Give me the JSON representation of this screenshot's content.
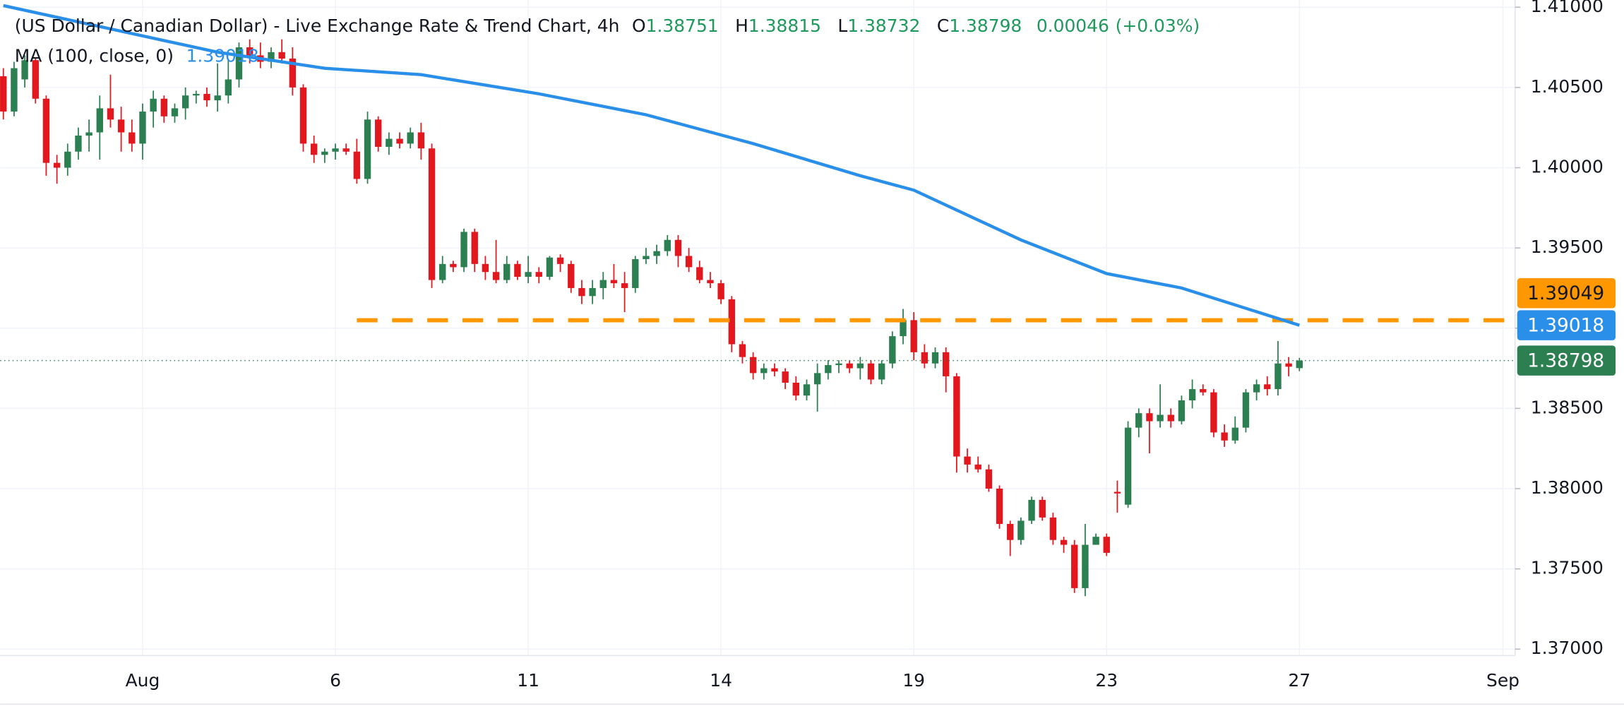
{
  "chart_data": {
    "type": "candlestick",
    "title": "(US Dollar / Canadian Dollar) - Live Exchange Rate & Trend Chart, 4h",
    "ohlc_labels": [
      "O",
      "H",
      "L",
      "C"
    ],
    "change": "0.00046",
    "change_pct": "(+0.03%)",
    "up_color": "#2b7f50",
    "down_color": "#e3171e",
    "header_value_color": "#1f9a5c",
    "xlim": [
      -0.3,
      151
    ],
    "xticks": [
      {
        "value": 13,
        "label": "Aug"
      },
      {
        "value": 31,
        "label": "6"
      },
      {
        "value": 49,
        "label": "11"
      },
      {
        "value": 67,
        "label": "14"
      },
      {
        "value": 85,
        "label": "19"
      },
      {
        "value": 103,
        "label": "23"
      },
      {
        "value": 121,
        "label": "27"
      },
      {
        "value": 140,
        "label": "Sep"
      }
    ],
    "ylim": [
      1.3696,
      1.41045
    ],
    "yticks": [
      {
        "value": 1.41,
        "label": "1.41000"
      },
      {
        "value": 1.405,
        "label": "1.40500"
      },
      {
        "value": 1.4,
        "label": "1.40000"
      },
      {
        "value": 1.395,
        "label": "1.39500"
      },
      {
        "value": 1.39,
        "label": "1.39000"
      },
      {
        "value": 1.385,
        "label": "1.38500"
      },
      {
        "value": 1.38,
        "label": "1.38000"
      },
      {
        "value": 1.375,
        "label": "1.37500"
      },
      {
        "value": 1.37,
        "label": "1.37000"
      }
    ],
    "grid": true,
    "candles": [
      [
        1.4057,
        1.4062,
        1.403,
        1.4035
      ],
      [
        1.4035,
        1.4066,
        1.4032,
        1.4062
      ],
      [
        1.4055,
        1.407,
        1.405,
        1.4067
      ],
      [
        1.4067,
        1.4068,
        1.404,
        1.4043
      ],
      [
        1.4043,
        1.4045,
        1.3995,
        1.4003
      ],
      [
        1.4003,
        1.4008,
        1.399,
        1.4
      ],
      [
        1.4,
        1.4015,
        1.3995,
        1.401
      ],
      [
        1.401,
        1.4025,
        1.4005,
        1.402
      ],
      [
        1.402,
        1.403,
        1.401,
        1.4022
      ],
      [
        1.4022,
        1.4045,
        1.4005,
        1.4037
      ],
      [
        1.4037,
        1.4058,
        1.4025,
        1.403
      ],
      [
        1.403,
        1.4038,
        1.401,
        1.4022
      ],
      [
        1.4022,
        1.403,
        1.401,
        1.4015
      ],
      [
        1.4015,
        1.404,
        1.4005,
        1.4035
      ],
      [
        1.4035,
        1.4048,
        1.4025,
        1.4043
      ],
      [
        1.4043,
        1.4045,
        1.4028,
        1.4032
      ],
      [
        1.4032,
        1.404,
        1.4028,
        1.4037
      ],
      [
        1.4037,
        1.405,
        1.403,
        1.4045
      ],
      [
        1.4045,
        1.4048,
        1.404,
        1.4046
      ],
      [
        1.4046,
        1.405,
        1.4038,
        1.4042
      ],
      [
        1.4042,
        1.4065,
        1.4035,
        1.4045
      ],
      [
        1.4045,
        1.4068,
        1.404,
        1.4055
      ],
      [
        1.4055,
        1.4078,
        1.405,
        1.4075
      ],
      [
        1.4075,
        1.408,
        1.4065,
        1.407
      ],
      [
        1.407,
        1.4078,
        1.4062,
        1.4066
      ],
      [
        1.4066,
        1.4075,
        1.4062,
        1.4072
      ],
      [
        1.4072,
        1.408,
        1.4065,
        1.4068
      ],
      [
        1.4068,
        1.4075,
        1.4045,
        1.405
      ],
      [
        1.405,
        1.4052,
        1.401,
        1.4015
      ],
      [
        1.4015,
        1.402,
        1.4003,
        1.4008
      ],
      [
        1.4008,
        1.4012,
        1.4003,
        1.401
      ],
      [
        1.401,
        1.4015,
        1.4005,
        1.4012
      ],
      [
        1.4012,
        1.4015,
        1.4008,
        1.401
      ],
      [
        1.401,
        1.4018,
        1.399,
        1.3993
      ],
      [
        1.3993,
        1.4035,
        1.399,
        1.403
      ],
      [
        1.403,
        1.4032,
        1.401,
        1.4013
      ],
      [
        1.4013,
        1.4022,
        1.4008,
        1.4018
      ],
      [
        1.4018,
        1.4022,
        1.4012,
        1.4015
      ],
      [
        1.4015,
        1.4025,
        1.4012,
        1.4022
      ],
      [
        1.4022,
        1.4028,
        1.4005,
        1.4012
      ],
      [
        1.4012,
        1.4015,
        1.3925,
        1.393
      ],
      [
        1.393,
        1.3945,
        1.3928,
        1.394
      ],
      [
        1.394,
        1.3942,
        1.3935,
        1.3938
      ],
      [
        1.3938,
        1.3962,
        1.3935,
        1.396
      ],
      [
        1.396,
        1.3962,
        1.3935,
        1.394
      ],
      [
        1.394,
        1.3945,
        1.393,
        1.3935
      ],
      [
        1.3935,
        1.3955,
        1.3928,
        1.393
      ],
      [
        1.393,
        1.3945,
        1.3928,
        1.394
      ],
      [
        1.394,
        1.3942,
        1.393,
        1.3932
      ],
      [
        1.3932,
        1.3945,
        1.3928,
        1.3935
      ],
      [
        1.3935,
        1.3938,
        1.3928,
        1.3932
      ],
      [
        1.3932,
        1.3945,
        1.393,
        1.3944
      ],
      [
        1.3944,
        1.3946,
        1.3935,
        1.394
      ],
      [
        1.394,
        1.3942,
        1.3922,
        1.3925
      ],
      [
        1.3925,
        1.393,
        1.3915,
        1.392
      ],
      [
        1.392,
        1.393,
        1.3915,
        1.3925
      ],
      [
        1.3925,
        1.3935,
        1.3918,
        1.393
      ],
      [
        1.393,
        1.394,
        1.3925,
        1.3928
      ],
      [
        1.3928,
        1.3935,
        1.391,
        1.3925
      ],
      [
        1.3925,
        1.3945,
        1.3922,
        1.3943
      ],
      [
        1.3943,
        1.395,
        1.394,
        1.3945
      ],
      [
        1.3945,
        1.3952,
        1.394,
        1.3948
      ],
      [
        1.3948,
        1.3958,
        1.3945,
        1.3955
      ],
      [
        1.3955,
        1.3958,
        1.3938,
        1.3945
      ],
      [
        1.3945,
        1.395,
        1.3935,
        1.3938
      ],
      [
        1.3938,
        1.3942,
        1.3928,
        1.393
      ],
      [
        1.393,
        1.3935,
        1.3925,
        1.3928
      ],
      [
        1.3928,
        1.393,
        1.3915,
        1.3918
      ],
      [
        1.3918,
        1.392,
        1.3885,
        1.389
      ],
      [
        1.389,
        1.3892,
        1.3878,
        1.3882
      ],
      [
        1.3882,
        1.3885,
        1.3868,
        1.3872
      ],
      [
        1.3872,
        1.3878,
        1.3868,
        1.3875
      ],
      [
        1.3875,
        1.3878,
        1.387,
        1.3873
      ],
      [
        1.3873,
        1.3875,
        1.3862,
        1.3866
      ],
      [
        1.3866,
        1.387,
        1.3855,
        1.3858
      ],
      [
        1.3858,
        1.3868,
        1.3855,
        1.3865
      ],
      [
        1.3865,
        1.3878,
        1.3848,
        1.3872
      ],
      [
        1.3872,
        1.388,
        1.3868,
        1.3877
      ],
      [
        1.3877,
        1.388,
        1.3872,
        1.3878
      ],
      [
        1.3878,
        1.388,
        1.3872,
        1.3875
      ],
      [
        1.3875,
        1.3882,
        1.3868,
        1.3878
      ],
      [
        1.3878,
        1.388,
        1.3865,
        1.3868
      ],
      [
        1.3868,
        1.388,
        1.3865,
        1.3878
      ],
      [
        1.3878,
        1.3898,
        1.3875,
        1.3895
      ],
      [
        1.3895,
        1.3912,
        1.389,
        1.3905
      ],
      [
        1.3905,
        1.391,
        1.388,
        1.3885
      ],
      [
        1.3885,
        1.389,
        1.3875,
        1.3878
      ],
      [
        1.3878,
        1.3888,
        1.3875,
        1.3885
      ],
      [
        1.3885,
        1.3888,
        1.386,
        1.387
      ],
      [
        1.387,
        1.3872,
        1.381,
        1.382
      ],
      [
        1.382,
        1.3825,
        1.381,
        1.3815
      ],
      [
        1.3815,
        1.382,
        1.381,
        1.3812
      ],
      [
        1.3812,
        1.3815,
        1.3798,
        1.38
      ],
      [
        1.38,
        1.3802,
        1.3775,
        1.3778
      ],
      [
        1.3778,
        1.378,
        1.3758,
        1.3768
      ],
      [
        1.3768,
        1.3782,
        1.3765,
        1.378
      ],
      [
        1.378,
        1.3795,
        1.3778,
        1.3793
      ],
      [
        1.3793,
        1.3795,
        1.378,
        1.3782
      ],
      [
        1.3782,
        1.3785,
        1.3765,
        1.3768
      ],
      [
        1.3768,
        1.377,
        1.376,
        1.3765
      ],
      [
        1.3765,
        1.3768,
        1.3735,
        1.3738
      ],
      [
        1.3738,
        1.3778,
        1.3733,
        1.3765
      ],
      [
        1.3765,
        1.3772,
        1.3765,
        1.377
      ],
      [
        1.377,
        1.3772,
        1.3758,
        1.376
      ],
      [
        1.3798,
        1.3805,
        1.3785,
        1.3797
      ],
      [
        1.379,
        1.3842,
        1.3788,
        1.3838
      ],
      [
        1.3838,
        1.385,
        1.3832,
        1.3847
      ],
      [
        1.3847,
        1.385,
        1.3822,
        1.3842
      ],
      [
        1.3842,
        1.3865,
        1.3838,
        1.3846
      ],
      [
        1.3846,
        1.385,
        1.3838,
        1.3842
      ],
      [
        1.3842,
        1.3858,
        1.384,
        1.3855
      ],
      [
        1.3855,
        1.3868,
        1.385,
        1.3862
      ],
      [
        1.3862,
        1.3865,
        1.3858,
        1.386
      ],
      [
        1.386,
        1.3862,
        1.3832,
        1.3835
      ],
      [
        1.3835,
        1.384,
        1.3826,
        1.383
      ],
      [
        1.383,
        1.3845,
        1.3828,
        1.3838
      ],
      [
        1.3838,
        1.3862,
        1.3835,
        1.386
      ],
      [
        1.386,
        1.3868,
        1.3855,
        1.3865
      ],
      [
        1.3865,
        1.387,
        1.3858,
        1.3862
      ],
      [
        1.3862,
        1.3892,
        1.3858,
        1.3878
      ],
      [
        1.3878,
        1.3882,
        1.387,
        1.3876
      ],
      [
        1.38751,
        1.38815,
        1.38732,
        1.38798
      ]
    ],
    "series": [
      {
        "name": "MA (100, close, 0)",
        "color": "#2a8fe8",
        "x": [
          0,
          20,
          30,
          39,
          50,
          60,
          70,
          80,
          85,
          95,
          103,
          110,
          121
        ],
        "values": [
          1.4101,
          1.4072,
          1.4062,
          1.4058,
          1.4046,
          1.4033,
          1.4015,
          1.3995,
          1.3986,
          1.3955,
          1.3934,
          1.3925,
          1.39018
        ]
      }
    ],
    "hline": {
      "value": 1.39049,
      "label": "1.39049",
      "color": "#ff9800",
      "from_x": 33
    },
    "last_price_label": "1.38798"
  }
}
